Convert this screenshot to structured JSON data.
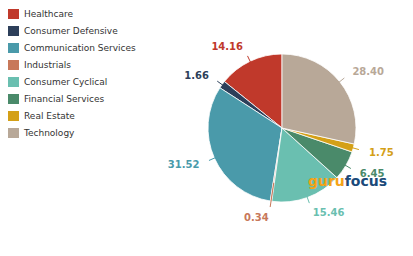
{
  "chart_data": {
    "type": "pie",
    "categories": [
      "Healthcare",
      "Consumer Defensive",
      "Communication Services",
      "Industrials",
      "Consumer Cyclical",
      "Financial Services",
      "Real Estate",
      "Technology"
    ],
    "values": [
      14.16,
      1.66,
      31.52,
      0.34,
      15.46,
      6.45,
      1.75,
      28.4
    ],
    "value_labels": [
      "14.16",
      "1.66",
      "31.52",
      "0.34",
      "15.46",
      "6.45",
      "1.75",
      "28.40"
    ],
    "colors": [
      "#c0392b",
      "#2d3f5a",
      "#4a9aaa",
      "#c8785a",
      "#6abfb0",
      "#4a8a6a",
      "#d4a017",
      "#b8a898"
    ],
    "data_labels": true,
    "legend": "left",
    "annotations": [
      {
        "text": "guru",
        "color": "#f5a317"
      },
      {
        "text": "focus",
        "color": "#1a4a7a"
      }
    ]
  }
}
